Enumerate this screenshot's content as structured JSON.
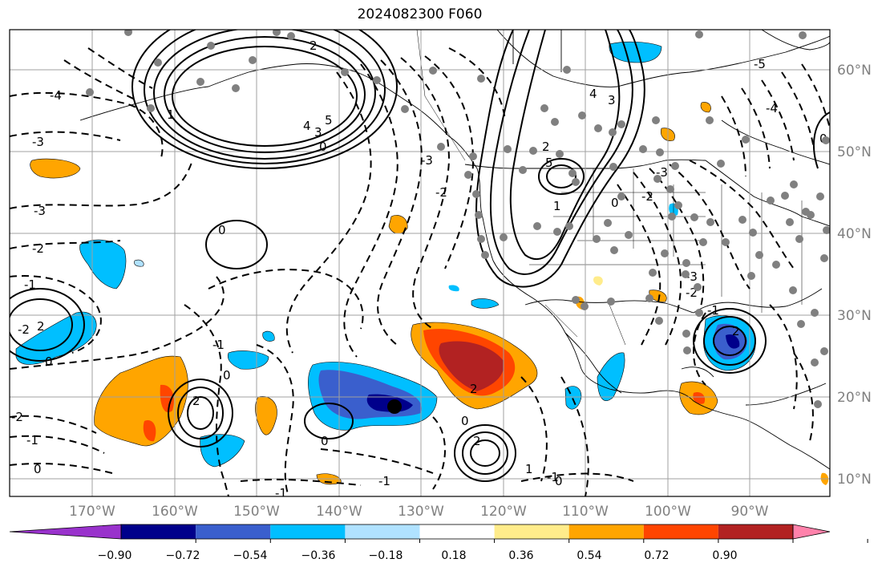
{
  "title": "2024082300 F060",
  "lon_ticks": [
    "170°W",
    "160°W",
    "150°W",
    "140°W",
    "130°W",
    "120°W",
    "110°W",
    "100°W",
    "90°W"
  ],
  "lat_ticks": [
    "60°N",
    "50°N",
    "40°N",
    "30°N",
    "20°N",
    "10°N"
  ],
  "colorbar": {
    "labels": [
      "−0.90",
      "−0.72",
      "−0.54",
      "−0.36",
      "−0.18",
      "0.18",
      "0.36",
      "0.54",
      "0.72",
      "0.90"
    ],
    "colors": [
      "#9932cc",
      "#00008b",
      "#3a5fcd",
      "#00bfff",
      "#b0e2ff",
      "#ffffff",
      "#ffec8b",
      "#ffa500",
      "#ff4500",
      "#b22222",
      "#ff82ab"
    ]
  },
  "contour_labels": {
    "neg": [
      "-4",
      "-3",
      "-2",
      "-1",
      "-3",
      "-2",
      "-1",
      "-2",
      "-3",
      "-2",
      "-1",
      "-1",
      "-1",
      "-2",
      "-3",
      "-4",
      "-5",
      "-3",
      "-2",
      "-1",
      "-1"
    ],
    "zero": [
      "0",
      "0",
      "0",
      "0",
      "0",
      "0",
      "0",
      "0",
      "0",
      "0"
    ],
    "pos": [
      "5",
      "4",
      "3",
      "2",
      "1",
      "5",
      "4",
      "3",
      "2",
      "1",
      "2",
      "2",
      "2",
      "1",
      "2",
      "2"
    ]
  },
  "colors": {
    "land_line": "#000000",
    "grid": "#a0a0a0",
    "marker": "#808080"
  }
}
